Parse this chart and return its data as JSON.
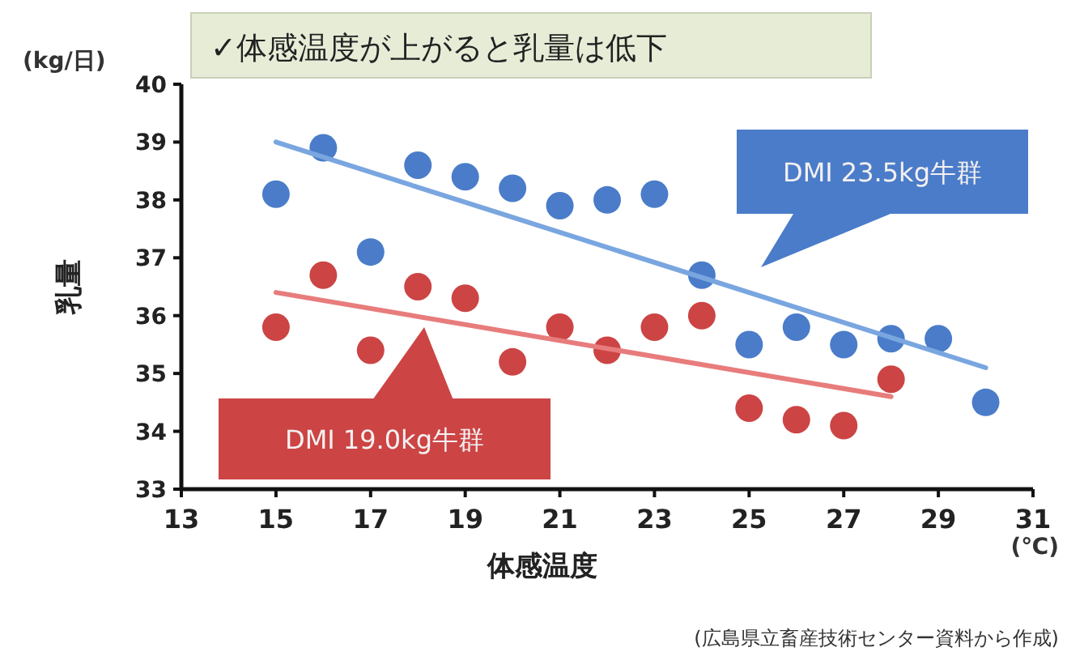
{
  "chart_data": {
    "type": "scatter",
    "title": "✓体感温度が上がると乳量は低下",
    "xlabel": "体感温度",
    "ylabel": "乳量",
    "annotations": [
      "(kg/日)",
      "(℃)",
      "(広島県立畜産技術センター資料から作成)"
    ],
    "xlim": [
      13,
      31
    ],
    "xticks": [
      13,
      15,
      17,
      19,
      21,
      23,
      25,
      27,
      29,
      31
    ],
    "ylim": [
      33,
      40
    ],
    "yticks": [
      33,
      34,
      35,
      36,
      37,
      38,
      39,
      40
    ],
    "grid": false,
    "series": [
      {
        "name": "DMI 23.5kg牛群",
        "marker": "circle",
        "color": "#4a7cc9",
        "x": [
          15,
          16,
          17,
          18,
          19,
          20,
          21,
          22,
          23,
          24,
          25,
          26,
          27,
          28,
          29,
          30
        ],
        "values": [
          38.1,
          38.9,
          37.1,
          38.6,
          38.4,
          38.2,
          37.9,
          38.0,
          38.1,
          36.7,
          35.5,
          35.8,
          35.5,
          35.6,
          35.6,
          34.5
        ]
      },
      {
        "name": "DMI 19.0kg牛群",
        "marker": "circle",
        "color": "#cc4444",
        "x": [
          15,
          16,
          17,
          18,
          19,
          20,
          21,
          22,
          23,
          24,
          25,
          26,
          27,
          28
        ],
        "values": [
          35.8,
          36.7,
          35.4,
          36.5,
          36.3,
          35.2,
          35.8,
          35.4,
          35.8,
          36.0,
          34.4,
          34.2,
          34.1,
          34.9
        ]
      },
      {
        "type": "line",
        "color": "#7aa6e0",
        "x": [
          15,
          30
        ],
        "values": [
          39.0,
          35.1
        ]
      },
      {
        "type": "line",
        "color": "#e87c7c",
        "x": [
          15,
          28
        ],
        "values": [
          36.4,
          34.6
        ]
      }
    ]
  }
}
